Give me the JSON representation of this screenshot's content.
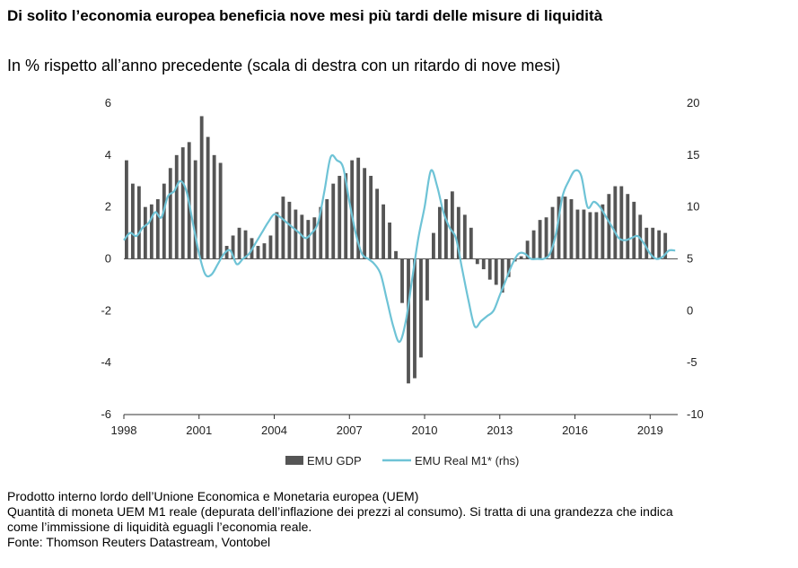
{
  "title": "Di solito l’economia europea beneficia nove mesi più tardi delle misure di liquidità",
  "subtitle": "In % rispetto all’anno precedente (scala di destra con un ritardo di nove mesi)",
  "notes": [
    "Prodotto interno lordo dell’Unione Economica e Monetaria europea (UEM)",
    "Quantità di moneta UEM M1 reale (depurata dell’inflazione dei prezzi al consumo). Si tratta di una grandezza che indica",
    "come l’immissione di liquidità eguagli l’economia reale.",
    "Fonte: Thomson Reuters Datastream, Vontobel"
  ],
  "colors": {
    "gdp": "#555555",
    "m1": "#6ec3d6"
  },
  "chart_data": {
    "type": "bar",
    "x_range": [
      1998,
      2020.1
    ],
    "x_ticks": [
      1998,
      2001,
      2004,
      2007,
      2010,
      2013,
      2016,
      2019
    ],
    "y_left": {
      "ylim": [
        -6,
        6
      ],
      "ticks": [
        -6,
        -4,
        -2,
        0,
        2,
        4,
        6
      ]
    },
    "y_right": {
      "ylim": [
        -10,
        20
      ],
      "ticks": [
        -10,
        -5,
        0,
        5,
        10,
        15,
        20
      ]
    },
    "legend": {
      "placement": "bottom-center",
      "gdp_label": "EMU GDP",
      "m1_label": "EMU Real M1* (rhs)"
    },
    "series": [
      {
        "name": "EMU GDP",
        "axis": "left",
        "kind": "bar",
        "x": [
          1998.0,
          1998.25,
          1998.5,
          1998.75,
          1999.0,
          1999.25,
          1999.5,
          1999.75,
          2000.0,
          2000.25,
          2000.5,
          2000.75,
          2001.0,
          2001.25,
          2001.5,
          2001.75,
          2002.0,
          2002.25,
          2002.5,
          2002.75,
          2003.0,
          2003.25,
          2003.5,
          2003.75,
          2004.0,
          2004.25,
          2004.5,
          2004.75,
          2005.0,
          2005.25,
          2005.5,
          2005.75,
          2006.0,
          2006.25,
          2006.5,
          2006.75,
          2007.0,
          2007.25,
          2007.5,
          2007.75,
          2008.0,
          2008.25,
          2008.5,
          2008.75,
          2009.0,
          2009.25,
          2009.5,
          2009.75,
          2010.0,
          2010.25,
          2010.5,
          2010.75,
          2011.0,
          2011.25,
          2011.5,
          2011.75,
          2012.0,
          2012.25,
          2012.5,
          2012.75,
          2013.0,
          2013.25,
          2013.5,
          2013.75,
          2014.0,
          2014.25,
          2014.5,
          2014.75,
          2015.0,
          2015.25,
          2015.5,
          2015.75,
          2016.0,
          2016.25,
          2016.5,
          2016.75,
          2017.0,
          2017.25,
          2017.5,
          2017.75,
          2018.0,
          2018.25,
          2018.5,
          2018.75,
          2019.0,
          2019.25,
          2019.5
        ],
        "values": [
          3.8,
          2.9,
          2.8,
          2.0,
          2.1,
          2.3,
          2.9,
          3.5,
          4.0,
          4.3,
          4.5,
          3.8,
          5.5,
          4.7,
          4.0,
          3.7,
          0.5,
          0.9,
          1.2,
          1.1,
          0.8,
          0.5,
          0.6,
          0.9,
          1.8,
          2.4,
          2.2,
          1.9,
          1.7,
          1.5,
          1.6,
          2.0,
          2.3,
          2.9,
          3.2,
          3.3,
          3.8,
          3.9,
          3.5,
          3.2,
          2.7,
          2.1,
          1.4,
          0.3,
          -1.7,
          -4.8,
          -4.6,
          -3.8,
          -1.6,
          1.0,
          2.0,
          2.3,
          2.6,
          2.0,
          1.7,
          1.2,
          -0.2,
          -0.4,
          -0.8,
          -1.0,
          -1.3,
          -0.7,
          -0.1,
          0.1,
          0.7,
          1.1,
          1.5,
          1.6,
          2.0,
          2.4,
          2.4,
          2.3,
          1.9,
          1.9,
          1.8,
          1.8,
          2.1,
          2.5,
          2.8,
          2.8,
          2.5,
          2.2,
          1.7,
          1.2,
          1.2,
          1.1,
          1.0
        ]
      },
      {
        "name": "EMU Real M1* (rhs)",
        "axis": "right",
        "kind": "line",
        "x": [
          1998.0,
          1998.25,
          1998.5,
          1998.75,
          1999.0,
          1999.25,
          1999.5,
          1999.75,
          2000.0,
          2000.25,
          2000.5,
          2000.75,
          2001.0,
          2001.25,
          2001.5,
          2001.75,
          2002.0,
          2002.25,
          2002.5,
          2002.75,
          2003.0,
          2003.25,
          2003.5,
          2003.75,
          2004.0,
          2004.25,
          2004.5,
          2004.75,
          2005.0,
          2005.25,
          2005.5,
          2005.75,
          2006.0,
          2006.25,
          2006.5,
          2006.75,
          2007.0,
          2007.25,
          2007.5,
          2007.75,
          2008.0,
          2008.25,
          2008.5,
          2008.75,
          2009.0,
          2009.25,
          2009.5,
          2009.75,
          2010.0,
          2010.25,
          2010.5,
          2010.75,
          2011.0,
          2011.25,
          2011.5,
          2011.75,
          2012.0,
          2012.25,
          2012.5,
          2012.75,
          2013.0,
          2013.25,
          2013.5,
          2013.75,
          2014.0,
          2014.25,
          2014.5,
          2014.75,
          2015.0,
          2015.25,
          2015.5,
          2015.75,
          2016.0,
          2016.25,
          2016.5,
          2016.75,
          2017.0,
          2017.25,
          2017.5,
          2017.75,
          2018.0,
          2018.25,
          2018.5,
          2018.75,
          2019.0,
          2019.25,
          2019.5,
          2019.75,
          2020.0
        ],
        "values": [
          6.8,
          7.5,
          7.2,
          8.0,
          8.5,
          9.5,
          9.0,
          11.0,
          11.5,
          12.5,
          11.5,
          8.5,
          5.5,
          3.5,
          3.5,
          4.5,
          5.5,
          5.8,
          4.5,
          5.0,
          5.5,
          6.5,
          7.5,
          8.5,
          9.3,
          9.0,
          8.5,
          8.0,
          7.5,
          7.0,
          7.5,
          8.5,
          11.5,
          14.8,
          14.5,
          13.8,
          10.5,
          7.5,
          5.5,
          5.0,
          4.5,
          3.5,
          1.0,
          -1.5,
          -3.0,
          -1.0,
          3.0,
          7.0,
          10.0,
          13.5,
          12.0,
          9.5,
          8.0,
          7.0,
          4.0,
          1.0,
          -1.5,
          -1.0,
          -0.5,
          0.0,
          1.5,
          3.0,
          4.5,
          5.5,
          5.5,
          5.0,
          5.0,
          5.0,
          5.5,
          7.5,
          11.0,
          12.5,
          13.5,
          13.0,
          10.0,
          10.5,
          10.0,
          9.0,
          8.0,
          7.0,
          6.8,
          7.0,
          7.2,
          6.5,
          5.5,
          5.0,
          5.2,
          5.8,
          5.8
        ]
      }
    ]
  }
}
